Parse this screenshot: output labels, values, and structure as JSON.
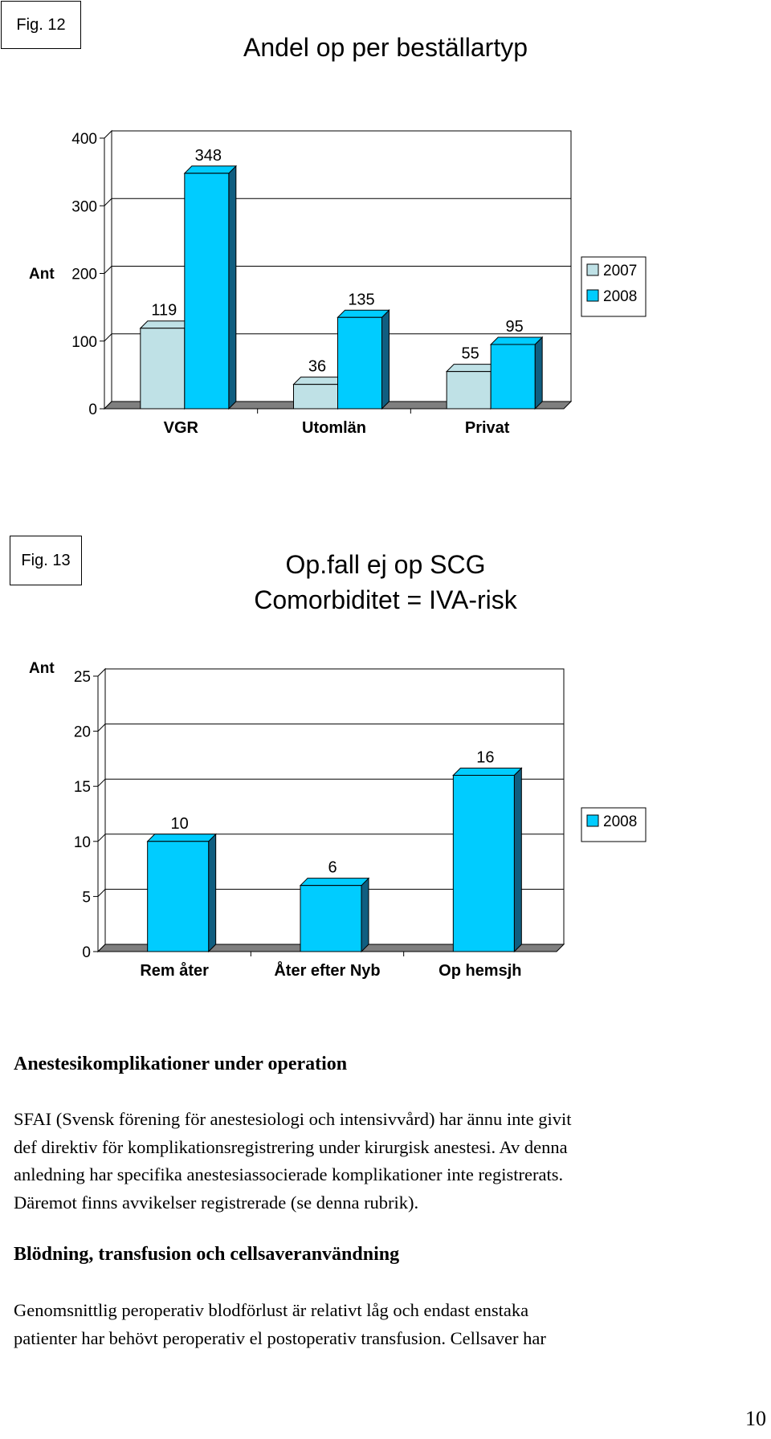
{
  "fig12": {
    "label": "Fig. 12",
    "title": "Andel op per beställartyp"
  },
  "fig13": {
    "label": "Fig. 13",
    "title_lines": [
      "Op.fall ej op SCG",
      "Comorbiditet = IVA-risk"
    ]
  },
  "colors": {
    "series_2007": "#bfe1e6",
    "series_2008": "#00ccff",
    "series_2008_side": "#105e80",
    "series_2007_side": "#6f9ea6"
  },
  "chart_data": [
    {
      "type": "bar",
      "title": "Andel op per beställartyp",
      "ylabel": "Ant",
      "xlabel": "",
      "categories": [
        "VGR",
        "Utomlän",
        "Privat"
      ],
      "series": [
        {
          "name": "2007",
          "values": [
            119,
            36,
            55
          ]
        },
        {
          "name": "2008",
          "values": [
            348,
            135,
            95
          ]
        }
      ],
      "ylim": [
        0,
        400
      ],
      "yticks": [
        0,
        100,
        200,
        300,
        400
      ],
      "grid": true,
      "legend": "right"
    },
    {
      "type": "bar",
      "title": "Op.fall ej op SCG Comorbiditet = IVA-risk",
      "ylabel": "Ant",
      "xlabel": "",
      "categories": [
        "Rem åter",
        "Åter efter Nyb",
        "Op hemsjh"
      ],
      "series": [
        {
          "name": "2008",
          "values": [
            10,
            6,
            16
          ]
        }
      ],
      "ylim": [
        0,
        25
      ],
      "yticks": [
        0,
        5,
        10,
        15,
        20,
        25
      ],
      "grid": true,
      "legend": "right"
    }
  ],
  "text": {
    "heading1": "Anestesikomplikationer under operation",
    "para1": "SFAI (Svensk förening för anestesiologi och intensivvård) har ännu inte givit\ndef direktiv för komplikationsregistrering under kirurgisk anestesi. Av denna\nanledning har specifika anestesiassocierade komplikationer inte registrerats.\nDäremot finns avvikelser registrerade (se denna rubrik).",
    "heading2": "Blödning, transfusion och cellsaveranvändning",
    "para2": "Genomsnittlig peroperativ blodförlust är relativt låg och endast enstaka\npatienter har behövt peroperativ el postoperativ transfusion. Cellsaver har"
  },
  "page_number": "10"
}
